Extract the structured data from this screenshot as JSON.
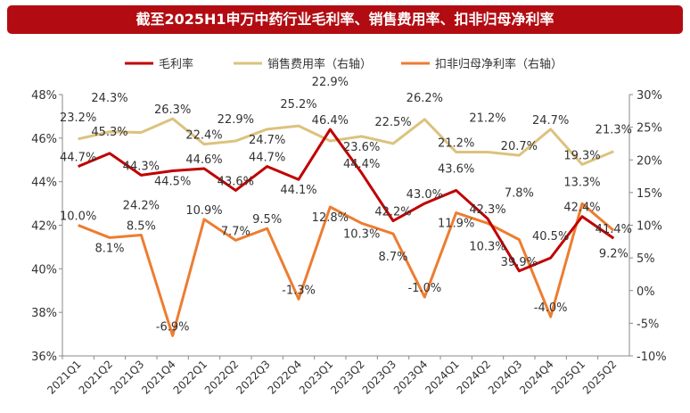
{
  "chart_data": {
    "type": "line",
    "title": "截至2025H1申万中药行业毛利率、销售费用率、扣非归母净利率",
    "categories": [
      "2021Q1",
      "2021Q2",
      "2021Q3",
      "2021Q4",
      "2022Q1",
      "2022Q2",
      "2022Q3",
      "2022Q4",
      "2023Q1",
      "2023Q2",
      "2023Q3",
      "2023Q4",
      "2024Q1",
      "2024Q2",
      "2024Q3",
      "2024Q4",
      "2025Q1",
      "2025Q2"
    ],
    "y_left": {
      "range": [
        36,
        48
      ],
      "ticks": [
        "36%",
        "38%",
        "40%",
        "42%",
        "44%",
        "46%",
        "48%"
      ]
    },
    "y_right": {
      "range": [
        -10,
        30
      ],
      "ticks": [
        "-10%",
        "-5%",
        "0%",
        "5%",
        "10%",
        "15%",
        "20%",
        "25%",
        "30%"
      ]
    },
    "legend_position": "top",
    "grid": false,
    "series": [
      {
        "name": "毛利率",
        "axis": "left",
        "color": "#c00000",
        "values": [
          44.7,
          45.3,
          44.3,
          44.5,
          44.6,
          43.6,
          44.7,
          44.1,
          46.4,
          44.4,
          42.2,
          43.0,
          43.6,
          42.3,
          39.9,
          40.5,
          42.4,
          41.4
        ]
      },
      {
        "name": "销售费用率（右轴）",
        "axis": "right",
        "color": "#dcc27d",
        "values": [
          23.2,
          24.3,
          24.2,
          26.3,
          22.4,
          22.9,
          24.7,
          25.2,
          22.9,
          23.6,
          22.5,
          26.2,
          21.2,
          21.2,
          20.7,
          24.7,
          19.3,
          21.3
        ]
      },
      {
        "name": "扣非归母净利率（右轴）",
        "axis": "right",
        "color": "#ed7d31",
        "values": [
          10.0,
          8.1,
          8.5,
          -6.9,
          10.9,
          7.7,
          9.5,
          -1.3,
          12.8,
          10.3,
          8.7,
          -1.0,
          11.9,
          10.3,
          7.8,
          -4.0,
          13.3,
          9.2
        ]
      }
    ]
  }
}
